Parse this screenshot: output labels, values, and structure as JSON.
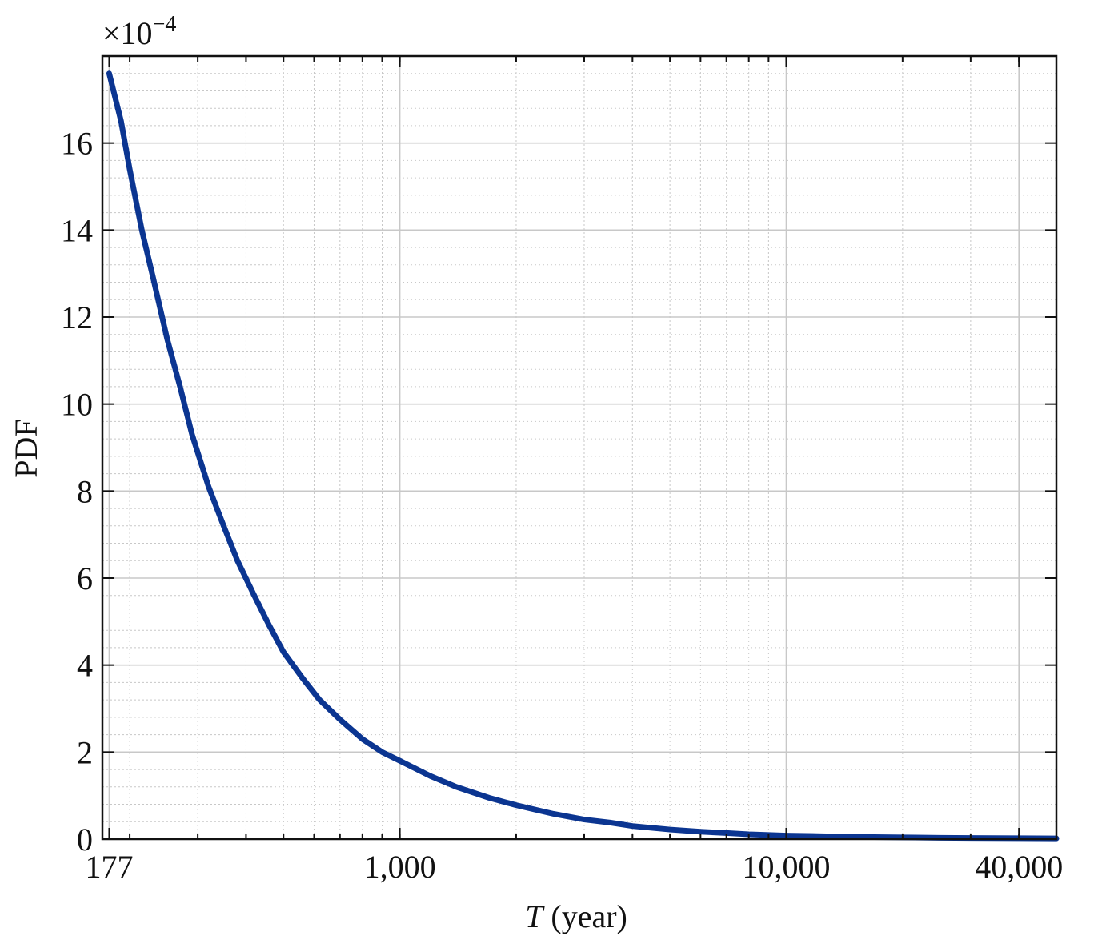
{
  "chart_data": {
    "type": "line",
    "xscale": "log",
    "xlabel_italic": "T",
    "xlabel_rest": " (year)",
    "ylabel": "PDF",
    "y_multiplier_base": "×10",
    "y_multiplier_exp": "−4",
    "xlim": [
      170,
      50000
    ],
    "ylim": [
      0,
      18
    ],
    "xticks": [
      177,
      1000,
      10000,
      40000
    ],
    "xtick_labels": [
      "177",
      "1,000",
      "10,000",
      "40,000"
    ],
    "yticks": [
      0,
      2,
      4,
      6,
      8,
      10,
      12,
      14,
      16
    ],
    "ytick_labels": [
      "0",
      "2",
      "4",
      "6",
      "8",
      "10",
      "12",
      "14",
      "16"
    ],
    "grid": true,
    "series": [
      {
        "color": "#0b3591",
        "x": [
          177,
          190,
          200,
          215,
          230,
          250,
          270,
          290,
          320,
          350,
          380,
          420,
          460,
          500,
          560,
          620,
          700,
          800,
          900,
          1000,
          1200,
          1400,
          1700,
          2000,
          2500,
          3000,
          3500,
          4000,
          5000,
          6000,
          7000,
          8000,
          10000,
          12000,
          15000,
          20000,
          25000,
          30000,
          40000,
          50000
        ],
        "y": [
          17.6,
          16.5,
          15.4,
          14.0,
          12.9,
          11.5,
          10.4,
          9.3,
          8.1,
          7.2,
          6.4,
          5.6,
          4.9,
          4.3,
          3.7,
          3.2,
          2.75,
          2.3,
          2.0,
          1.8,
          1.45,
          1.2,
          0.95,
          0.78,
          0.58,
          0.45,
          0.38,
          0.3,
          0.22,
          0.17,
          0.14,
          0.11,
          0.08,
          0.07,
          0.05,
          0.04,
          0.03,
          0.025,
          0.02,
          0.015
        ]
      }
    ]
  }
}
